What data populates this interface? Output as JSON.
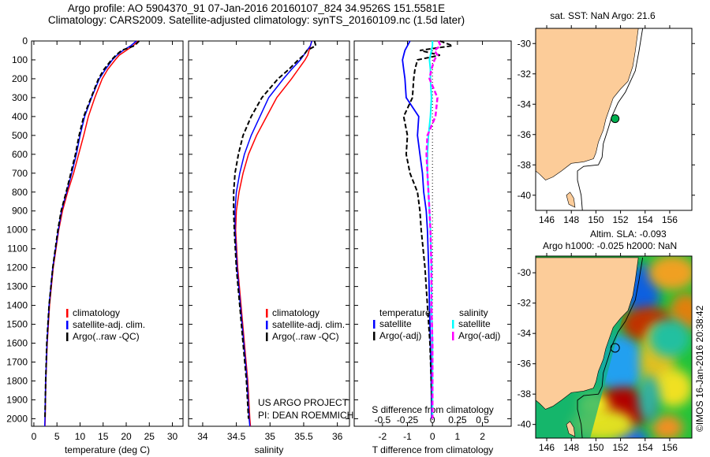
{
  "title_line1": "Argo profile: AO 5904370_91 07-Jan-2016 20160107_824 34.9526S 151.5581E",
  "title_line2": "Climatology: CARS2009. Satellite-adjusted climatology: synTS_20160109.nc (1.5d later)",
  "colors": {
    "climatology": "#ff0000",
    "satellite": "#0000ff",
    "argo": "#000000",
    "sal_satellite": "#00ffff",
    "sal_argo": "#ff00ff",
    "land": "#fccc99"
  },
  "chart_data": [
    {
      "type": "line",
      "id": "temperature",
      "xlabel": "temperature (deg C)",
      "ylabel": "",
      "xlim": [
        -0.5,
        32.3
      ],
      "ylim": [
        0,
        2040
      ],
      "xticks": [
        0,
        5,
        10,
        15,
        20,
        25,
        30
      ],
      "yticks": [
        0,
        100,
        200,
        300,
        400,
        500,
        600,
        700,
        800,
        900,
        1000,
        1100,
        1200,
        1300,
        1400,
        1500,
        1600,
        1700,
        1800,
        1900,
        2000
      ],
      "legend": [
        "climatology",
        "satellite-adj. clim.",
        "Argo(..raw -QC)"
      ],
      "depth": [
        0,
        25,
        50,
        75,
        100,
        150,
        200,
        300,
        400,
        500,
        600,
        700,
        800,
        900,
        1000,
        1200,
        1400,
        1600,
        1800,
        2000,
        2040
      ],
      "series": [
        {
          "name": "climatology",
          "values": [
            22.6,
            21.5,
            20.0,
            18.5,
            17.6,
            16.0,
            14.8,
            13.2,
            11.8,
            10.8,
            9.7,
            8.6,
            7.3,
            6.2,
            5.4,
            4.2,
            3.4,
            2.9,
            2.6,
            2.45,
            2.4
          ]
        },
        {
          "name": "satellite-adj. clim.",
          "values": [
            22.2,
            21.0,
            19.3,
            18.0,
            17.0,
            15.5,
            14.2,
            12.5,
            11.0,
            10.0,
            9.2,
            8.2,
            7.1,
            6.0,
            5.3,
            4.1,
            3.3,
            2.85,
            2.55,
            2.4,
            2.35
          ]
        },
        {
          "name": "Argo(..raw -QC)",
          "values": [
            22.8,
            21.8,
            19.0,
            17.8,
            16.8,
            15.2,
            14.0,
            12.4,
            10.8,
            9.8,
            9.0,
            8.0,
            7.0,
            5.9,
            5.2,
            4.1,
            3.3,
            2.8,
            2.55,
            2.4,
            null
          ]
        }
      ]
    },
    {
      "type": "line",
      "id": "salinity",
      "xlabel": "salinity",
      "ylabel": "",
      "xlim": [
        33.79,
        36.18
      ],
      "ylim": [
        0,
        2040
      ],
      "xticks": [
        34,
        34.5,
        35,
        35.5,
        36
      ],
      "legend": [
        "climatology",
        "satellite-adj. clim.",
        "Argo(..raw -QC)"
      ],
      "annotation": [
        "US ARGO PROJECT",
        "PI: DEAN ROEMMICH"
      ],
      "depth": [
        0,
        25,
        50,
        75,
        100,
        150,
        200,
        300,
        400,
        500,
        600,
        700,
        800,
        900,
        1000,
        1200,
        1400,
        1600,
        1800,
        2000,
        2040
      ],
      "series": [
        {
          "name": "climatology",
          "values": [
            35.62,
            35.6,
            35.58,
            35.56,
            35.52,
            35.42,
            35.32,
            35.1,
            34.95,
            34.8,
            34.68,
            34.6,
            34.54,
            34.5,
            34.49,
            34.52,
            34.57,
            34.62,
            34.67,
            34.7,
            34.71
          ]
        },
        {
          "name": "satellite-adj. clim.",
          "values": [
            35.62,
            35.6,
            35.55,
            35.5,
            35.45,
            35.32,
            35.2,
            34.98,
            34.85,
            34.72,
            34.62,
            34.55,
            34.5,
            34.48,
            34.48,
            34.51,
            34.56,
            34.61,
            34.66,
            34.69,
            34.7
          ]
        },
        {
          "name": "Argo(..raw -QC)",
          "values": [
            35.66,
            35.68,
            35.55,
            35.5,
            35.42,
            35.28,
            35.12,
            34.88,
            34.72,
            34.6,
            34.53,
            34.48,
            34.46,
            34.46,
            34.47,
            34.5,
            34.55,
            34.6,
            34.65,
            34.68,
            null
          ]
        }
      ]
    },
    {
      "type": "line",
      "id": "difference",
      "xlabel": "T difference from climatology",
      "x2label": "S difference from climatology",
      "xlim": [
        -3.13,
        3.15
      ],
      "ylim": [
        0,
        2040
      ],
      "xticks": [
        -2,
        -1,
        0,
        1,
        2
      ],
      "xticks_labels": [
        "-2",
        "-1",
        "0",
        "1",
        "2"
      ],
      "x2ticks": [
        -0.5,
        -0.25,
        0,
        0.25,
        0.5
      ],
      "x2ticks_labels": [
        "-0.5",
        "-0.25",
        "0",
        "0.25",
        "0.5"
      ],
      "s_to_t_scale": 4,
      "legend_headers": [
        "temperature",
        "salinity"
      ],
      "legend": [
        "satellite",
        "Argo(-adj)",
        "satellite",
        "Argo(-adj)"
      ],
      "depth": [
        0,
        25,
        50,
        75,
        100,
        150,
        200,
        300,
        400,
        500,
        600,
        700,
        800,
        900,
        1000,
        1200,
        1400,
        1600,
        1800,
        2000
      ],
      "series": [
        {
          "name": "T satellite",
          "units": "T",
          "values": [
            -0.9,
            -1.0,
            -1.1,
            -1.15,
            -1.2,
            -1.15,
            -1.1,
            -1.05,
            -0.55,
            -0.6,
            -0.5,
            -0.4,
            -0.35,
            -0.25,
            -0.2,
            -0.15,
            -0.12,
            -0.08,
            -0.05,
            -0.03
          ]
        },
        {
          "name": "T Argo(-adj)",
          "units": "T",
          "values": [
            0.3,
            0.8,
            -0.5,
            0.3,
            -0.6,
            -0.7,
            -0.75,
            -0.8,
            -1.15,
            -1.0,
            -1.05,
            -0.9,
            -0.6,
            -0.5,
            -0.45,
            -0.3,
            -0.2,
            -0.1,
            -0.05,
            0.0
          ]
        },
        {
          "name": "S satellite",
          "units": "S",
          "values": [
            0.0,
            0.0,
            -0.01,
            -0.02,
            -0.03,
            -0.02,
            -0.02,
            -0.01,
            -0.02,
            -0.04,
            -0.05,
            -0.05,
            -0.04,
            -0.03,
            -0.02,
            -0.01,
            -0.01,
            0.0,
            0.0,
            0.0
          ]
        },
        {
          "name": "S Argo(-adj)",
          "units": "S",
          "values": [
            0.06,
            0.08,
            0.02,
            0.05,
            0.02,
            -0.01,
            -0.03,
            0.05,
            0.03,
            -0.05,
            -0.06,
            -0.05,
            -0.04,
            -0.03,
            -0.02,
            -0.01,
            -0.01,
            0.0,
            0.0,
            0.0
          ]
        }
      ]
    },
    {
      "type": "map",
      "id": "sst_map",
      "title": "sat. SST: NaN Argo: 21.6",
      "xlim": [
        145.1,
        157.8
      ],
      "ylim": [
        -41.0,
        -29.0
      ],
      "xticks": [
        146,
        148,
        150,
        152,
        154,
        156
      ],
      "yticks": [
        -30,
        -32,
        -34,
        -36,
        -38,
        -40
      ],
      "marker": {
        "lon": 151.5581,
        "lat": -34.9526,
        "color": "#00b050"
      }
    },
    {
      "type": "heatmap",
      "id": "sla_map",
      "title": [
        "Altim. SLA: -0.093",
        "Argo h1000: -0.025 h2000: NaN"
      ],
      "xlim": [
        145.1,
        157.8
      ],
      "ylim": [
        -40.9,
        -28.9
      ],
      "xticks": [
        146,
        148,
        150,
        152,
        154,
        156
      ],
      "yticks": [
        -30,
        -32,
        -34,
        -36,
        -38,
        -40
      ],
      "marker": {
        "lon": 151.5581,
        "lat": -34.9526
      },
      "credit": "©IMOS 16-Jan-2016 20:38:42"
    }
  ]
}
